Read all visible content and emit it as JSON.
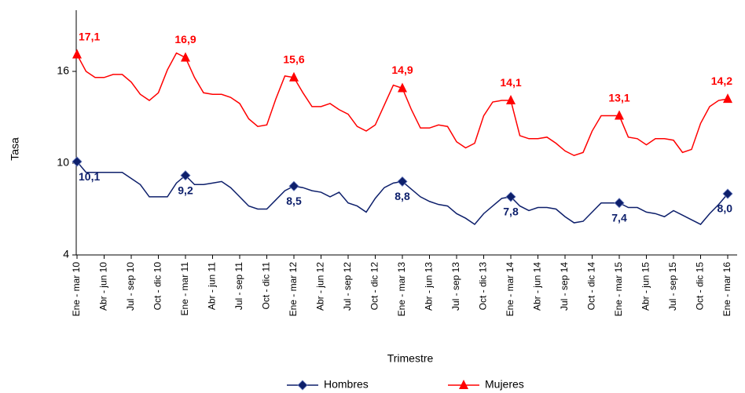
{
  "chart_data": {
    "type": "line",
    "x_label": "Trimestre",
    "y_label": "Tasa",
    "categories": [
      "Ene - mar 10",
      null,
      null,
      "Abr - jun 10",
      null,
      null,
      "Jul - sep 10",
      null,
      null,
      "Oct - dic 10",
      null,
      null,
      "Ene - mar 11",
      null,
      null,
      "Abr - jun 11",
      null,
      null,
      "Jul - sep 11",
      null,
      null,
      "Oct - dic 11",
      null,
      null,
      "Ene - mar 12",
      null,
      null,
      "Abr - jun 12",
      null,
      null,
      "Jul - sep 12",
      null,
      null,
      "Oct - dic 12",
      null,
      null,
      "Ene - mar 13",
      null,
      null,
      "Abr - jun 13",
      null,
      null,
      "Jul - sep 13",
      null,
      null,
      "Oct - dic 13",
      null,
      null,
      "Ene - mar 14",
      null,
      null,
      "Abr - jun 14",
      null,
      null,
      "Jul - sep 14",
      null,
      null,
      "Oct - dic 14",
      null,
      null,
      "Ene - mar 15",
      null,
      null,
      "Abr - jun 15",
      null,
      null,
      "Jul -  sep 15",
      null,
      null,
      "Oct - dic 15",
      null,
      null,
      "Ene - mar 16"
    ],
    "series": [
      {
        "name": "Hombres",
        "color": "#0d1f6b",
        "marker": "diamond",
        "values": [
          10.1,
          9.4,
          9.4,
          9.4,
          9.4,
          9.4,
          9.0,
          8.6,
          7.8,
          7.8,
          7.8,
          8.7,
          9.2,
          8.6,
          8.6,
          8.7,
          8.8,
          8.4,
          7.8,
          7.2,
          7.0,
          7.0,
          7.6,
          8.2,
          8.5,
          8.4,
          8.2,
          8.1,
          7.8,
          8.1,
          7.4,
          7.2,
          6.8,
          7.7,
          8.4,
          8.7,
          8.8,
          8.3,
          7.8,
          7.5,
          7.3,
          7.2,
          6.7,
          6.4,
          6.0,
          6.7,
          7.2,
          7.7,
          7.8,
          7.2,
          6.9,
          7.1,
          7.1,
          7.0,
          6.5,
          6.1,
          6.2,
          6.8,
          7.4,
          7.4,
          7.4,
          7.1,
          7.1,
          6.8,
          6.7,
          6.5,
          6.9,
          6.6,
          6.3,
          6.0,
          6.7,
          7.3,
          8.0
        ],
        "value_labels": [
          "10,1",
          null,
          null,
          null,
          null,
          null,
          null,
          null,
          null,
          null,
          null,
          null,
          "9,2",
          null,
          null,
          null,
          null,
          null,
          null,
          null,
          null,
          null,
          null,
          null,
          "8,5",
          null,
          null,
          null,
          null,
          null,
          null,
          null,
          null,
          null,
          null,
          null,
          "8,8",
          null,
          null,
          null,
          null,
          null,
          null,
          null,
          null,
          null,
          null,
          null,
          "7,8",
          null,
          null,
          null,
          null,
          null,
          null,
          null,
          null,
          null,
          null,
          null,
          "7,4",
          null,
          null,
          null,
          null,
          null,
          null,
          null,
          null,
          null,
          null,
          null,
          "8,0"
        ]
      },
      {
        "name": "Mujeres",
        "color": "#ff0000",
        "marker": "triangle",
        "values": [
          17.1,
          16.0,
          15.6,
          15.6,
          15.8,
          15.8,
          15.3,
          14.5,
          14.1,
          14.6,
          16.1,
          17.2,
          16.9,
          15.6,
          14.6,
          14.5,
          14.5,
          14.3,
          13.9,
          12.9,
          12.4,
          12.5,
          14.2,
          15.7,
          15.6,
          14.6,
          13.7,
          13.7,
          13.9,
          13.5,
          13.2,
          12.4,
          12.1,
          12.5,
          13.8,
          15.1,
          14.9,
          13.5,
          12.3,
          12.3,
          12.5,
          12.4,
          11.4,
          11.0,
          11.3,
          13.1,
          14.0,
          14.1,
          14.1,
          11.8,
          11.6,
          11.6,
          11.7,
          11.3,
          10.8,
          10.5,
          10.7,
          12.1,
          13.1,
          13.1,
          13.1,
          11.7,
          11.6,
          11.2,
          11.6,
          11.6,
          11.5,
          10.7,
          10.9,
          12.6,
          13.7,
          14.1,
          14.2
        ],
        "value_labels": [
          "17,1",
          null,
          null,
          null,
          null,
          null,
          null,
          null,
          null,
          null,
          null,
          null,
          "16,9",
          null,
          null,
          null,
          null,
          null,
          null,
          null,
          null,
          null,
          null,
          null,
          "15,6",
          null,
          null,
          null,
          null,
          null,
          null,
          null,
          null,
          null,
          null,
          null,
          "14,9",
          null,
          null,
          null,
          null,
          null,
          null,
          null,
          null,
          null,
          null,
          null,
          "14,1",
          null,
          null,
          null,
          null,
          null,
          null,
          null,
          null,
          null,
          null,
          null,
          "13,1",
          null,
          null,
          null,
          null,
          null,
          null,
          null,
          null,
          null,
          null,
          null,
          "14,2"
        ]
      }
    ],
    "ylim": [
      4,
      20
    ],
    "yticks": [
      4,
      10,
      16
    ],
    "grid": false,
    "legend": "bottom"
  }
}
